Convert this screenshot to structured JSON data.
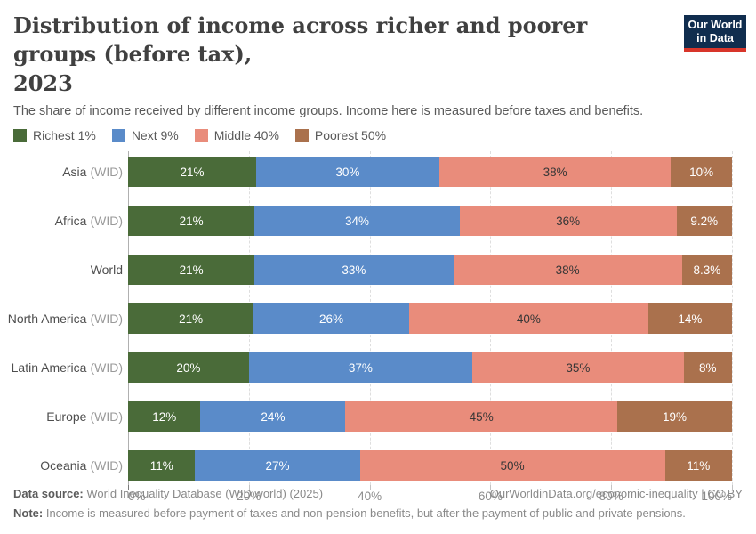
{
  "header": {
    "title_line1": "Distribution of income across richer and poorer groups (before tax),",
    "title_line2": "2023",
    "subtitle": "The share of income received by different income groups. Income here is measured before taxes and benefits.",
    "logo": {
      "line1": "Our World",
      "line2": "in Data",
      "bg_color": "#102d4e",
      "accent_color": "#d8352a"
    }
  },
  "chart_data": {
    "type": "bar",
    "orientation": "horizontal",
    "stacked": true,
    "xlim": [
      0,
      100
    ],
    "x_ticks": [
      "0%",
      "20%",
      "40%",
      "60%",
      "80%",
      "100%"
    ],
    "grid": "dashed-vertical",
    "legend_position": "top",
    "series_meta": [
      {
        "name": "Richest 1%",
        "color": "#4a6b39",
        "label_color": "#ffffff"
      },
      {
        "name": "Next 9%",
        "color": "#5a8bc9",
        "label_color": "#ffffff"
      },
      {
        "name": "Middle 40%",
        "color": "#e98c7b",
        "label_color": "#363636"
      },
      {
        "name": "Poorest 50%",
        "color": "#aa714d",
        "label_color": "#ffffff"
      }
    ],
    "rows": [
      {
        "label": "Asia",
        "suffix": "(WID)",
        "values": [
          21,
          30,
          38,
          10
        ],
        "display": [
          "21%",
          "30%",
          "38%",
          "10%"
        ]
      },
      {
        "label": "Africa",
        "suffix": "(WID)",
        "values": [
          21,
          34,
          36,
          9.2
        ],
        "display": [
          "21%",
          "34%",
          "36%",
          "9.2%"
        ]
      },
      {
        "label": "World",
        "suffix": "",
        "values": [
          21,
          33,
          38,
          8.3
        ],
        "display": [
          "21%",
          "33%",
          "38%",
          "8.3%"
        ]
      },
      {
        "label": "North America",
        "suffix": "(WID)",
        "values": [
          21,
          26,
          40,
          14
        ],
        "display": [
          "21%",
          "26%",
          "40%",
          "14%"
        ]
      },
      {
        "label": "Latin America",
        "suffix": "(WID)",
        "values": [
          20,
          37,
          35,
          8
        ],
        "display": [
          "20%",
          "37%",
          "35%",
          "8%"
        ]
      },
      {
        "label": "Europe",
        "suffix": "(WID)",
        "values": [
          12,
          24,
          45,
          19
        ],
        "display": [
          "12%",
          "24%",
          "45%",
          "19%"
        ]
      },
      {
        "label": "Oceania",
        "suffix": "(WID)",
        "values": [
          11,
          27,
          50,
          11
        ],
        "display": [
          "11%",
          "27%",
          "50%",
          "11%"
        ]
      }
    ]
  },
  "footer": {
    "source_label": "Data source:",
    "source_text": "World Inequality Database (WID.world) (2025)",
    "link": "OurWorldinData.org/economic-inequality",
    "separator": "|",
    "license": "CC BY",
    "note_label": "Note:",
    "note_text": "Income is measured before payment of taxes and non-pension benefits, but after the payment of public and private pensions."
  }
}
